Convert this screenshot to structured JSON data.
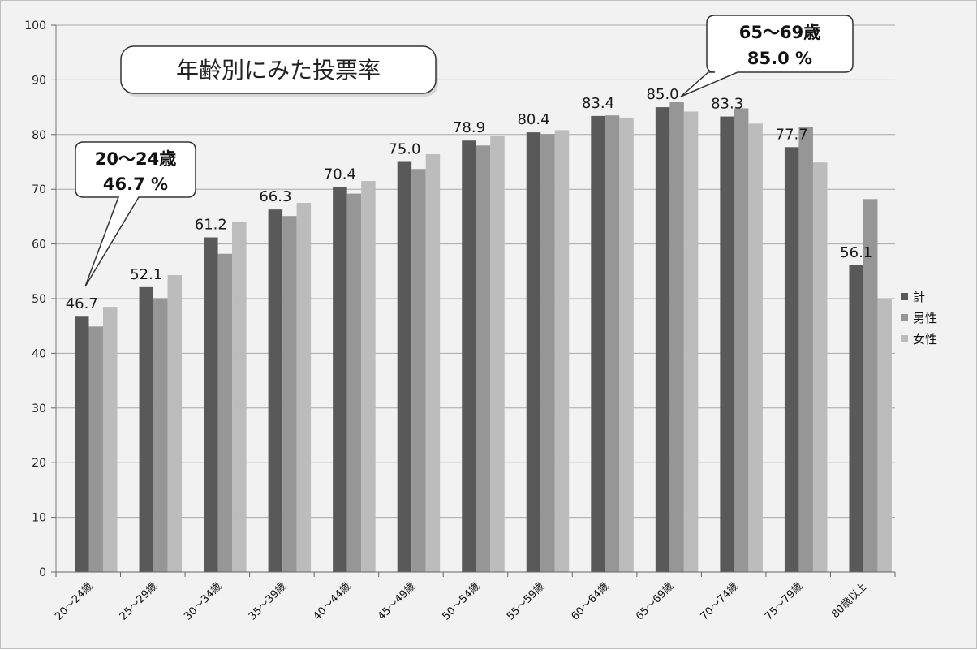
{
  "chart_data": {
    "type": "bar",
    "title": "年齢別にみた投票率",
    "categories": [
      "20〜24歳",
      "25〜29歳",
      "30〜34歳",
      "35〜39歳",
      "40〜44歳",
      "45〜49歳",
      "50〜54歳",
      "55〜59歳",
      "60〜64歳",
      "65〜69歳",
      "70〜74歳",
      "75〜79歳",
      "80歳以上"
    ],
    "series": [
      {
        "name": "計",
        "color": "#595959",
        "values": [
          46.7,
          52.1,
          61.2,
          66.3,
          70.4,
          75.0,
          78.9,
          80.4,
          83.4,
          85.0,
          83.3,
          77.7,
          56.1
        ]
      },
      {
        "name": "男性",
        "color": "#969696",
        "values": [
          44.9,
          50.1,
          58.2,
          65.1,
          69.2,
          73.7,
          78.0,
          80.1,
          83.5,
          85.9,
          84.8,
          81.4,
          68.2
        ]
      },
      {
        "name": "女性",
        "color": "#bcbcbc",
        "values": [
          48.5,
          54.3,
          64.1,
          67.5,
          71.5,
          76.4,
          79.8,
          80.8,
          83.1,
          84.2,
          82.0,
          74.9,
          50.1
        ]
      }
    ],
    "data_labels": [
      "46.7",
      "52.1",
      "61.2",
      "66.3",
      "70.4",
      "75.0",
      "78.9",
      "80.4",
      "83.4",
      "85.0",
      "83.3",
      "77.7",
      "56.1"
    ],
    "y_ticks": [
      "0",
      "10",
      "20",
      "30",
      "40",
      "50",
      "60",
      "70",
      "80",
      "90",
      "100"
    ],
    "ylim": [
      0,
      100
    ],
    "grid": true,
    "legend_position": "right",
    "callouts": [
      {
        "line1": "20〜24歳",
        "line2": "46.7 %"
      },
      {
        "line1": "65〜69歳",
        "line2": "85.0 %"
      }
    ]
  }
}
